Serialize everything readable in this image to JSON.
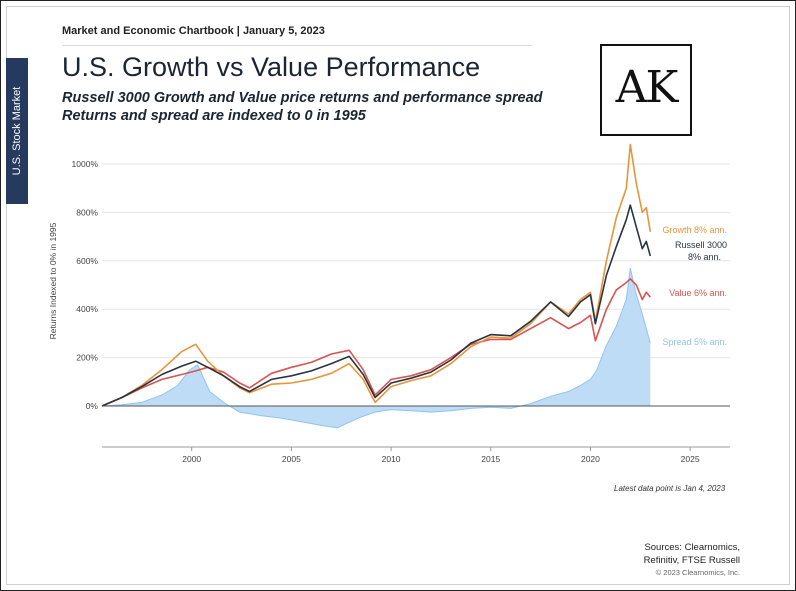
{
  "header": {
    "text": "Market and Economic Chartbook | January 5, 2023",
    "side_tab": "U.S. Stock Market",
    "title": "U.S. Growth vs Value Performance",
    "subtitle_1": "Russell 3000 Growth and Value price returns and performance spread",
    "subtitle_2": "Returns and spread are indexed to 0 in 1995",
    "logo": "AK"
  },
  "footer": {
    "latest": "Latest data point is Jan 4, 2023",
    "sources_1": "Sources: Clearnomics,",
    "sources_2": "Refinitiv, FTSE Russell",
    "copyright": "© 2023 Clearnomics, Inc."
  },
  "colors": {
    "growth": "#e8943a",
    "russell": "#2a3340",
    "value": "#d9534f",
    "spread_fill": "#bfdcf7",
    "spread_line": "#8fc4ef",
    "grid": "#e6e6e6"
  },
  "chart_data": {
    "type": "line",
    "title": "U.S. Growth vs Value Performance",
    "xlabel": "",
    "ylabel": "Returns Indexed to 0% in 1995",
    "xlim": [
      1995.5,
      2027
    ],
    "ylim": [
      -100,
      1100
    ],
    "y_ticks": [
      0,
      200,
      400,
      600,
      800,
      1000
    ],
    "y_tick_labels": [
      "0%",
      "200%",
      "400%",
      "600%",
      "800%",
      "1000%"
    ],
    "x_ticks": [
      2000,
      2005,
      2010,
      2015,
      2020,
      2025
    ],
    "x_tick_labels": [
      "2000",
      "2005",
      "2010",
      "2015",
      "2020",
      "2025"
    ],
    "series": [
      {
        "name": "Growth 8% ann.",
        "label_1": "Growth 8% ann.",
        "label_2": "",
        "color_key": "growth",
        "points": [
          [
            1995.5,
            0
          ],
          [
            1996.5,
            35
          ],
          [
            1997.5,
            85
          ],
          [
            1998.5,
            150
          ],
          [
            1999.5,
            225
          ],
          [
            2000.2,
            255
          ],
          [
            2000.8,
            185
          ],
          [
            2001.6,
            125
          ],
          [
            2002.4,
            75
          ],
          [
            2002.9,
            55
          ],
          [
            2004,
            90
          ],
          [
            2005,
            95
          ],
          [
            2006,
            110
          ],
          [
            2007,
            135
          ],
          [
            2007.9,
            175
          ],
          [
            2008.6,
            110
          ],
          [
            2009.2,
            15
          ],
          [
            2010,
            80
          ],
          [
            2011,
            105
          ],
          [
            2012,
            125
          ],
          [
            2013,
            175
          ],
          [
            2014,
            245
          ],
          [
            2015,
            285
          ],
          [
            2016,
            280
          ],
          [
            2017,
            340
          ],
          [
            2018,
            430
          ],
          [
            2018.9,
            380
          ],
          [
            2019.5,
            440
          ],
          [
            2020,
            470
          ],
          [
            2020.25,
            350
          ],
          [
            2020.8,
            600
          ],
          [
            2021.3,
            780
          ],
          [
            2021.8,
            900
          ],
          [
            2022.0,
            1080
          ],
          [
            2022.3,
            920
          ],
          [
            2022.6,
            800
          ],
          [
            2022.8,
            820
          ],
          [
            2023.0,
            720
          ]
        ]
      },
      {
        "name": "Russell 3000 8% ann.",
        "label_1": "Russell 3000",
        "label_2": "8% ann.",
        "color_key": "russell",
        "points": [
          [
            1995.5,
            0
          ],
          [
            1996.5,
            35
          ],
          [
            1997.5,
            80
          ],
          [
            1998.5,
            130
          ],
          [
            1999.5,
            165
          ],
          [
            2000.2,
            185
          ],
          [
            2000.8,
            160
          ],
          [
            2001.6,
            125
          ],
          [
            2002.4,
            80
          ],
          [
            2002.9,
            60
          ],
          [
            2004,
            110
          ],
          [
            2005,
            125
          ],
          [
            2006,
            145
          ],
          [
            2007,
            175
          ],
          [
            2007.9,
            205
          ],
          [
            2008.6,
            130
          ],
          [
            2009.2,
            35
          ],
          [
            2010,
            95
          ],
          [
            2011,
            115
          ],
          [
            2012,
            140
          ],
          [
            2013,
            190
          ],
          [
            2014,
            260
          ],
          [
            2015,
            295
          ],
          [
            2016,
            290
          ],
          [
            2017,
            350
          ],
          [
            2018,
            430
          ],
          [
            2018.9,
            370
          ],
          [
            2019.5,
            430
          ],
          [
            2020,
            460
          ],
          [
            2020.25,
            340
          ],
          [
            2020.8,
            540
          ],
          [
            2021.3,
            660
          ],
          [
            2021.8,
            770
          ],
          [
            2022.0,
            830
          ],
          [
            2022.3,
            740
          ],
          [
            2022.6,
            650
          ],
          [
            2022.8,
            680
          ],
          [
            2023.0,
            620
          ]
        ]
      },
      {
        "name": "Value 6% ann.",
        "label_1": "Value 6% ann.",
        "label_2": "",
        "color_key": "value",
        "points": [
          [
            1995.5,
            0
          ],
          [
            1996.5,
            35
          ],
          [
            1997.5,
            75
          ],
          [
            1998.5,
            110
          ],
          [
            1999.5,
            130
          ],
          [
            2000.2,
            145
          ],
          [
            2000.8,
            160
          ],
          [
            2001.6,
            140
          ],
          [
            2002.4,
            95
          ],
          [
            2002.9,
            75
          ],
          [
            2004,
            135
          ],
          [
            2005,
            160
          ],
          [
            2006,
            180
          ],
          [
            2007,
            215
          ],
          [
            2007.9,
            230
          ],
          [
            2008.6,
            150
          ],
          [
            2009.2,
            45
          ],
          [
            2010,
            110
          ],
          [
            2011,
            125
          ],
          [
            2012,
            150
          ],
          [
            2013,
            200
          ],
          [
            2014,
            255
          ],
          [
            2015,
            275
          ],
          [
            2016,
            275
          ],
          [
            2017,
            320
          ],
          [
            2018,
            365
          ],
          [
            2018.9,
            320
          ],
          [
            2019.5,
            345
          ],
          [
            2020,
            375
          ],
          [
            2020.25,
            270
          ],
          [
            2020.8,
            400
          ],
          [
            2021.3,
            480
          ],
          [
            2021.8,
            510
          ],
          [
            2022.0,
            525
          ],
          [
            2022.3,
            500
          ],
          [
            2022.6,
            440
          ],
          [
            2022.8,
            470
          ],
          [
            2023.0,
            450
          ]
        ]
      }
    ],
    "spread": {
      "name": "Spread 5% ann.",
      "label_1": "Spread 5% ann.",
      "label_2": "",
      "points": [
        [
          1995.5,
          0
        ],
        [
          1996.5,
          5
        ],
        [
          1997.5,
          15
        ],
        [
          1998.5,
          45
        ],
        [
          1999.3,
          85
        ],
        [
          1999.9,
          150
        ],
        [
          2000.3,
          170
        ],
        [
          2000.9,
          60
        ],
        [
          2001.6,
          15
        ],
        [
          2002.4,
          -25
        ],
        [
          2003.5,
          -40
        ],
        [
          2004.5,
          -50
        ],
        [
          2005.5,
          -65
        ],
        [
          2006.5,
          -80
        ],
        [
          2007.3,
          -90
        ],
        [
          2007.7,
          -75
        ],
        [
          2008.5,
          -45
        ],
        [
          2009.2,
          -25
        ],
        [
          2010,
          -15
        ],
        [
          2011,
          -20
        ],
        [
          2012,
          -25
        ],
        [
          2013,
          -20
        ],
        [
          2014,
          -10
        ],
        [
          2015,
          -5
        ],
        [
          2016,
          -10
        ],
        [
          2017,
          10
        ],
        [
          2018,
          40
        ],
        [
          2018.9,
          60
        ],
        [
          2019.5,
          85
        ],
        [
          2020,
          110
        ],
        [
          2020.3,
          145
        ],
        [
          2020.8,
          250
        ],
        [
          2021.3,
          330
        ],
        [
          2021.8,
          440
        ],
        [
          2022.0,
          570
        ],
        [
          2022.3,
          460
        ],
        [
          2022.6,
          380
        ],
        [
          2022.8,
          320
        ],
        [
          2023.0,
          260
        ]
      ]
    }
  }
}
